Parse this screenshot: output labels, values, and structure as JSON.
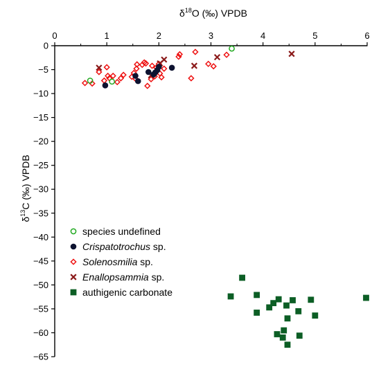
{
  "chart_data": {
    "type": "scatter",
    "x_axis": {
      "label_prefix": "δ",
      "label_sup": "18",
      "label_suffix": "O (‰) VPDB",
      "position": "top",
      "range": [
        0,
        6
      ],
      "ticks": [
        "0",
        "1",
        "2",
        "3",
        "4",
        "5",
        "6"
      ]
    },
    "y_axis": {
      "label_prefix": "δ",
      "label_sup": "13",
      "label_suffix": "C (‰) VPDB",
      "range": [
        -65,
        0
      ],
      "ticks": [
        "0",
        "−5",
        "−10",
        "−15",
        "−20",
        "−25",
        "−30",
        "−35",
        "−40",
        "−45",
        "−50",
        "−55",
        "−60",
        "−65"
      ]
    },
    "grid": false,
    "legend_position": "bottom-left",
    "series": [
      {
        "name": "species undefined",
        "name_italic": "",
        "name_rest": "species undefined",
        "marker": "open-circle",
        "color": "#22aa22",
        "points": [
          [
            0.68,
            -7.3
          ],
          [
            1.1,
            -7.5
          ],
          [
            3.4,
            -0.6
          ]
        ]
      },
      {
        "name": "Crispatotrochus sp.",
        "name_italic": "Crispatotrochus",
        "name_rest": " sp.",
        "marker": "filled-circle",
        "color": "#0d1330",
        "points": [
          [
            0.97,
            -8.3
          ],
          [
            1.55,
            -6.3
          ],
          [
            1.6,
            -7.4
          ],
          [
            1.8,
            -5.5
          ],
          [
            1.9,
            -6.0
          ],
          [
            1.93,
            -5.6
          ],
          [
            1.97,
            -5.1
          ],
          [
            2.0,
            -4.4
          ],
          [
            2.25,
            -4.6
          ]
        ]
      },
      {
        "name": "Solenosmilia sp.",
        "name_italic": "Solenosmilia",
        "name_rest": " sp.",
        "marker": "open-diamond",
        "color": "#ee1111",
        "points": [
          [
            0.58,
            -7.8
          ],
          [
            0.72,
            -7.9
          ],
          [
            0.85,
            -5.5
          ],
          [
            0.95,
            -7.3
          ],
          [
            1.0,
            -4.5
          ],
          [
            1.02,
            -6.3
          ],
          [
            1.05,
            -6.8
          ],
          [
            1.12,
            -6.3
          ],
          [
            1.2,
            -7.6
          ],
          [
            1.27,
            -6.8
          ],
          [
            1.32,
            -6.1
          ],
          [
            1.48,
            -6.5
          ],
          [
            1.52,
            -5.7
          ],
          [
            1.55,
            -6.9
          ],
          [
            1.57,
            -4.8
          ],
          [
            1.58,
            -3.9
          ],
          [
            1.68,
            -4.0
          ],
          [
            1.72,
            -3.5
          ],
          [
            1.75,
            -3.7
          ],
          [
            1.78,
            -8.4
          ],
          [
            1.85,
            -7.0
          ],
          [
            1.87,
            -4.2
          ],
          [
            1.92,
            -6.4
          ],
          [
            1.95,
            -4.6
          ],
          [
            2.0,
            -3.8
          ],
          [
            2.02,
            -5.8
          ],
          [
            2.05,
            -6.6
          ],
          [
            2.1,
            -4.8
          ],
          [
            2.38,
            -2.3
          ],
          [
            2.4,
            -1.8
          ],
          [
            2.62,
            -6.8
          ],
          [
            2.7,
            -1.3
          ],
          [
            2.95,
            -3.8
          ],
          [
            3.05,
            -4.3
          ],
          [
            3.3,
            -1.9
          ]
        ]
      },
      {
        "name": "Enallopsammia sp.",
        "name_italic": "Enallopsammia",
        "name_rest": " sp.",
        "marker": "cross",
        "color": "#8b1a1a",
        "points": [
          [
            0.85,
            -4.6
          ],
          [
            1.85,
            -6.2
          ],
          [
            2.02,
            -3.7
          ],
          [
            2.1,
            -2.9
          ],
          [
            2.68,
            -4.2
          ],
          [
            3.12,
            -2.4
          ],
          [
            4.55,
            -1.7
          ]
        ]
      },
      {
        "name": "authigenic carbonate",
        "name_italic": "",
        "name_rest": "authigenic carbonate",
        "marker": "filled-square",
        "color": "#0c5e25",
        "points": [
          [
            3.38,
            -52.4
          ],
          [
            3.6,
            -48.5
          ],
          [
            3.88,
            -52.1
          ],
          [
            3.88,
            -55.8
          ],
          [
            4.12,
            -54.7
          ],
          [
            4.2,
            -53.8
          ],
          [
            4.27,
            -60.3
          ],
          [
            4.3,
            -53.0
          ],
          [
            4.38,
            -61.0
          ],
          [
            4.4,
            -59.5
          ],
          [
            4.45,
            -54.3
          ],
          [
            4.47,
            -57.0
          ],
          [
            4.47,
            -62.5
          ],
          [
            4.57,
            -53.2
          ],
          [
            4.68,
            -55.5
          ],
          [
            4.7,
            -60.6
          ],
          [
            4.92,
            -53.1
          ],
          [
            5.0,
            -56.4
          ],
          [
            5.98,
            -52.7
          ]
        ]
      }
    ]
  }
}
